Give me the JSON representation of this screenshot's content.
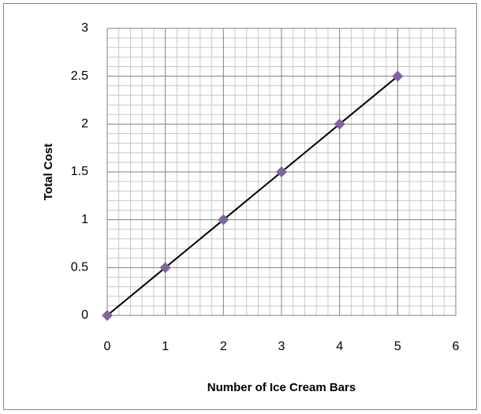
{
  "chart_data": {
    "type": "scatter",
    "x_label": "Number of Ice Cream Bars",
    "y_label": "Total Cost",
    "series": [
      {
        "x": [
          0,
          1,
          2,
          3,
          4,
          5
        ],
        "values": [
          0,
          0.5,
          1,
          1.5,
          2,
          2.5
        ],
        "color": "#8064a2",
        "line_color": "#000000"
      }
    ],
    "xlim": [
      0,
      6
    ],
    "xticks": [
      0,
      1,
      2,
      3,
      4,
      5,
      6
    ],
    "ylim": [
      0,
      3
    ],
    "yticks": [
      0,
      0.5,
      1,
      1.5,
      2,
      2.5,
      3
    ],
    "grid": true,
    "minor_grid": true
  }
}
